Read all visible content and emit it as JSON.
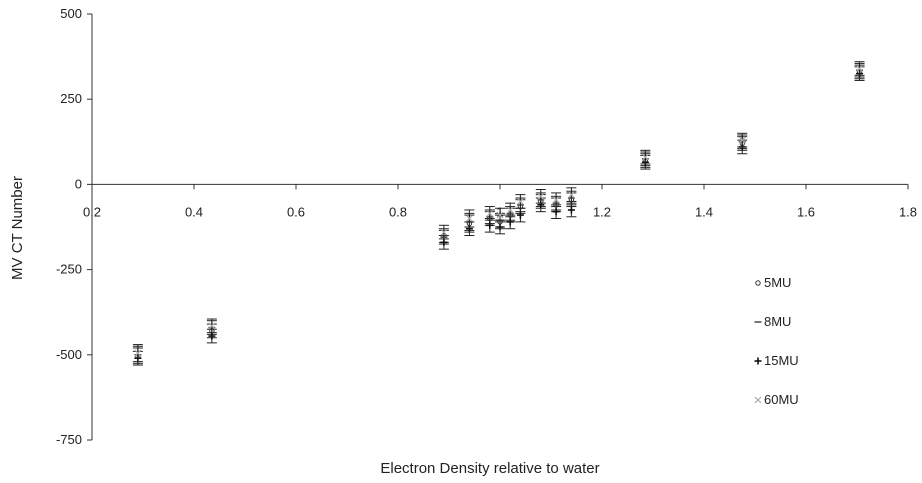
{
  "chart_data": {
    "type": "scatter",
    "title": "",
    "xlabel": "Electron Density relative to water",
    "ylabel": "MV CT Number",
    "xlim": [
      0.2,
      1.8
    ],
    "ylim": [
      -750,
      500
    ],
    "x_ticks": [
      "0.2",
      "0.4",
      "0.6",
      "0.8",
      "1",
      "1.2",
      "1.4",
      "1.6",
      "1.8"
    ],
    "y_ticks": [
      "500",
      "250",
      "0",
      "-250",
      "-500",
      "-750"
    ],
    "grid": false,
    "legend_position": "right",
    "series": [
      {
        "name": "5MU",
        "marker": "circle",
        "x": [
          0.29,
          0.435,
          0.89,
          0.94,
          0.98,
          1.0,
          1.02,
          1.04,
          1.08,
          1.11,
          1.14,
          1.285,
          1.475,
          1.705
        ],
        "y": [
          -505,
          -430,
          -150,
          -115,
          -100,
          -110,
          -90,
          -65,
          -50,
          -60,
          -45,
          70,
          120,
          330
        ],
        "err": [
          25,
          20,
          20,
          25,
          20,
          20,
          20,
          20,
          20,
          20,
          20,
          20,
          20,
          20
        ]
      },
      {
        "name": "8MU",
        "marker": "dash",
        "x": [
          0.29,
          0.435,
          0.89,
          0.94,
          0.98,
          1.0,
          1.02,
          1.04,
          1.08,
          1.11,
          1.14,
          1.285,
          1.475,
          1.705
        ],
        "y": [
          -500,
          -420,
          -155,
          -110,
          -95,
          -105,
          -85,
          -60,
          -45,
          -55,
          -40,
          75,
          125,
          335
        ],
        "err": [
          25,
          20,
          20,
          25,
          20,
          20,
          20,
          20,
          20,
          20,
          20,
          20,
          20,
          20
        ]
      },
      {
        "name": "15MU",
        "marker": "plus",
        "x": [
          0.29,
          0.435,
          0.89,
          0.94,
          0.98,
          1.0,
          1.02,
          1.04,
          1.08,
          1.11,
          1.14,
          1.285,
          1.475,
          1.705
        ],
        "y": [
          -510,
          -445,
          -170,
          -130,
          -120,
          -125,
          -110,
          -90,
          -60,
          -80,
          -75,
          65,
          110,
          325
        ],
        "err": [
          20,
          20,
          20,
          20,
          20,
          20,
          20,
          20,
          20,
          20,
          20,
          20,
          20,
          20
        ]
      },
      {
        "name": "60MU",
        "marker": "cross",
        "x": [
          0.29,
          0.435,
          0.89,
          0.94,
          0.98,
          1.0,
          1.02,
          1.04,
          1.08,
          1.11,
          1.14,
          1.285,
          1.475,
          1.705
        ],
        "y": [
          -495,
          -415,
          -140,
          -100,
          -85,
          -90,
          -75,
          -50,
          -35,
          -45,
          -30,
          80,
          130,
          340
        ],
        "err": [
          25,
          20,
          20,
          25,
          20,
          20,
          20,
          20,
          20,
          20,
          20,
          20,
          20,
          20
        ]
      }
    ]
  }
}
